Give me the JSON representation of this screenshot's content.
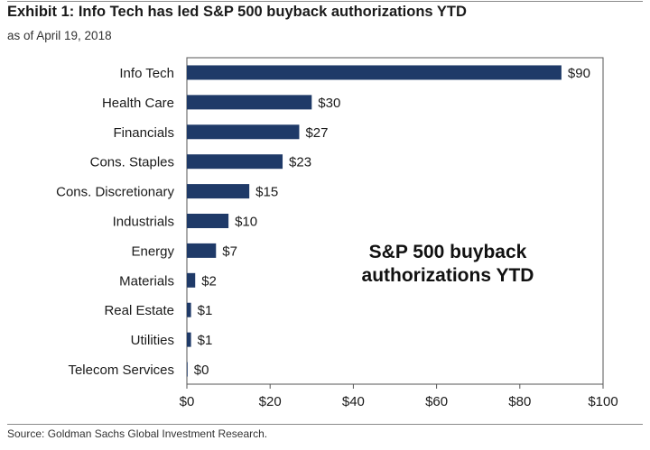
{
  "title": "Exhibit 1: Info Tech has led S&P 500 buyback authorizations YTD",
  "subtitle": "as of April 19, 2018",
  "source": "Source: Goldman Sachs Global Investment Research.",
  "chart_data": {
    "type": "bar",
    "orientation": "horizontal",
    "categories": [
      "Info Tech",
      "Health Care",
      "Financials",
      "Cons. Staples",
      "Cons. Discretionary",
      "Industrials",
      "Energy",
      "Materials",
      "Real Estate",
      "Utilities",
      "Telecom Services"
    ],
    "values": [
      90,
      30,
      27,
      23,
      15,
      10,
      7,
      2,
      1,
      1,
      0
    ],
    "data_labels": [
      "$90",
      "$30",
      "$27",
      "$23",
      "$15",
      "$10",
      "$7",
      "$2",
      "$1",
      "$1",
      "$0"
    ],
    "xlim": [
      0,
      100
    ],
    "x_ticks": [
      0,
      20,
      40,
      60,
      80,
      100
    ],
    "x_tick_labels": [
      "$0",
      "$20",
      "$40",
      "$60",
      "$80",
      "$100"
    ],
    "annotation_lines": [
      "S&P 500 buyback",
      "authorizations YTD"
    ],
    "grid": false,
    "bar_color": "#1f3a68"
  }
}
